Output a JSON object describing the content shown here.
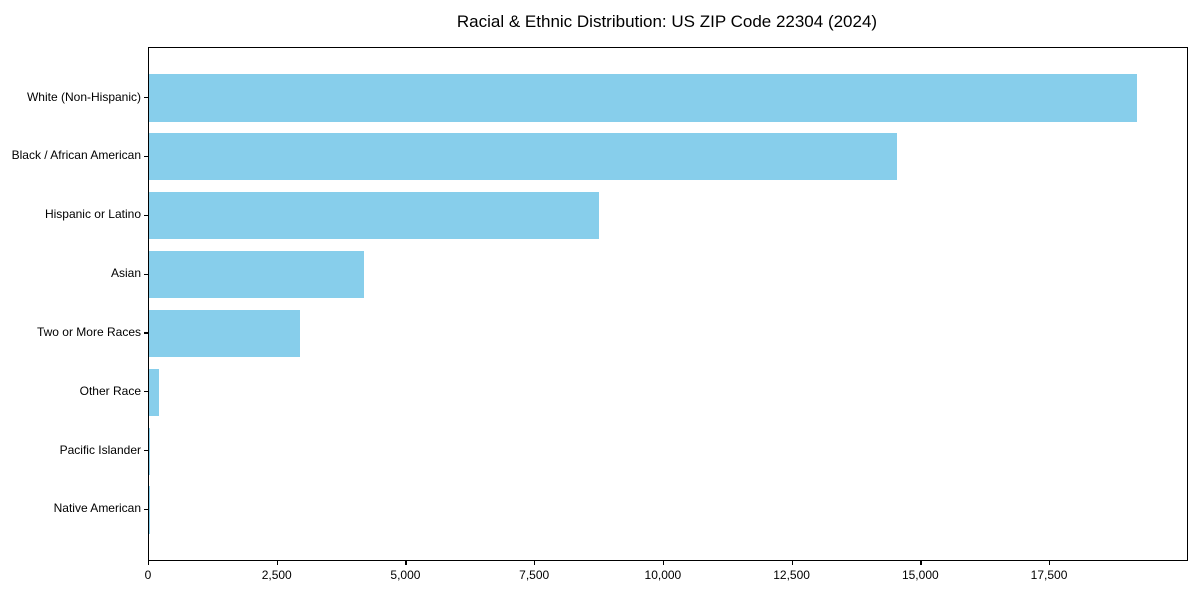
{
  "chart_data": {
    "type": "bar",
    "orientation": "horizontal",
    "title": "Racial & Ethnic Distribution: US ZIP Code 22304 (2024)",
    "xlabel": "",
    "ylabel": "",
    "categories": [
      "White (Non-Hispanic)",
      "Black / African American",
      "Hispanic or Latino",
      "Asian",
      "Two or More Races",
      "Other Race",
      "Pacific Islander",
      "Native American"
    ],
    "values": [
      19190,
      14530,
      8740,
      4170,
      2930,
      195,
      25,
      10
    ],
    "bar_color": "#87CEEB",
    "xlim": [
      0,
      20160
    ],
    "x_ticks": {
      "values": [
        0,
        2500,
        5000,
        7500,
        10000,
        12500,
        15000,
        17500
      ],
      "labels": [
        "0",
        "2,500",
        "5,000",
        "7,500",
        "10,000",
        "12,500",
        "15,000",
        "17,500"
      ]
    },
    "grid": false,
    "legend_position": "none",
    "axis_color": "#000000",
    "background_color": "#ffffff"
  }
}
